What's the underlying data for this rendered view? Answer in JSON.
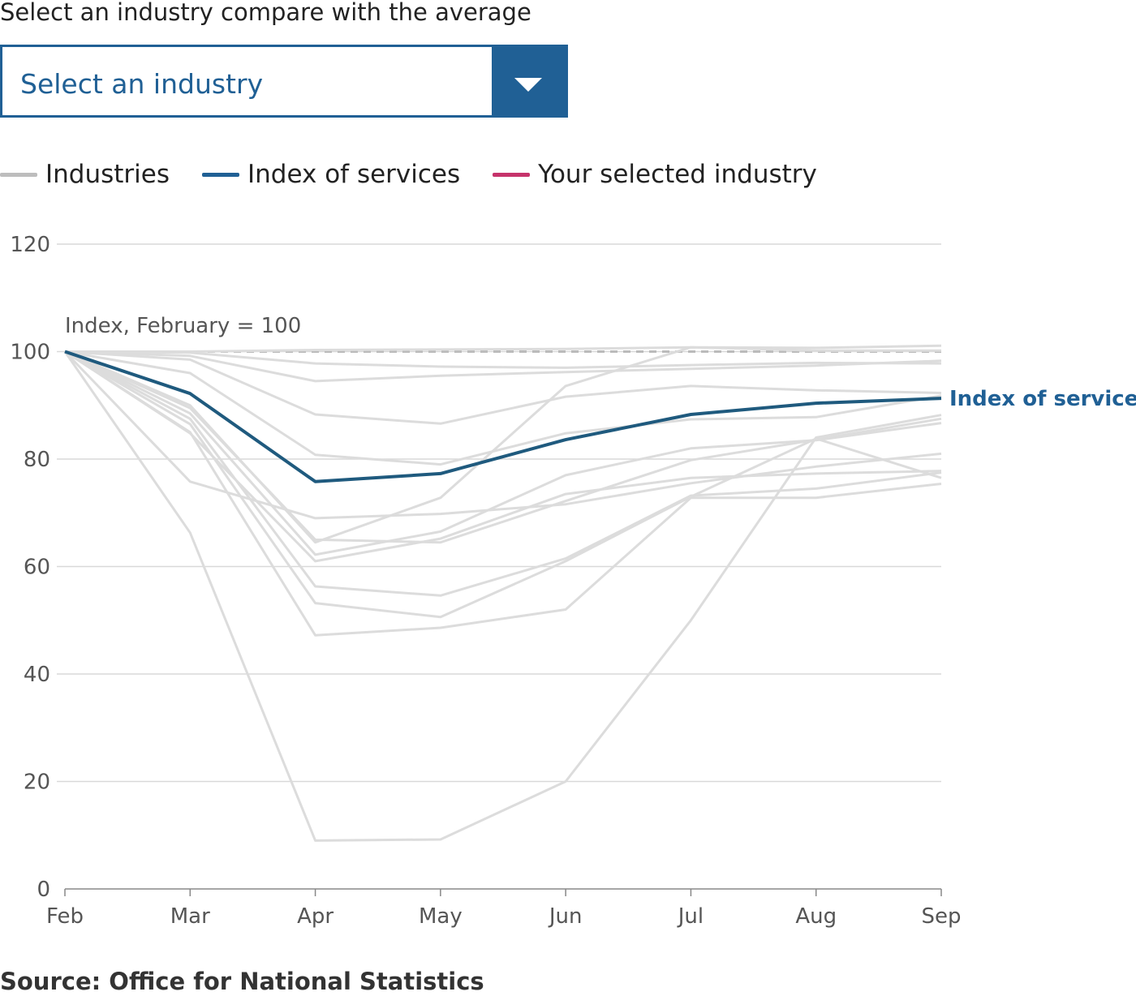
{
  "prompt": "Select an industry compare with the average",
  "select": {
    "value": "Select an industry",
    "icon": "chevron-down-icon"
  },
  "legend": [
    {
      "label": "Industries",
      "color": "#bdbdbd"
    },
    {
      "label": "Index of services",
      "color": "#206095"
    },
    {
      "label": "Your selected industry",
      "color": "#c6336b"
    }
  ],
  "source": "Source: Office for National Statistics",
  "chart_data": {
    "type": "line",
    "annotation": "Index, February = 100",
    "x": [
      "Feb",
      "Mar",
      "Apr",
      "May",
      "Jun",
      "Jul",
      "Aug",
      "Sep"
    ],
    "ylim": [
      0,
      120
    ],
    "yticks": [
      0,
      20,
      40,
      60,
      80,
      100,
      120
    ],
    "grid": true,
    "reference_line": 100,
    "highlight_label": "Index of services",
    "series": [
      {
        "name": "Index of services",
        "values": [
          100,
          92.2,
          75.8,
          77.3,
          83.6,
          88.3,
          90.4,
          91.3
        ]
      },
      {
        "values": [
          100,
          100,
          100.3,
          100.4,
          100.5,
          100.8,
          100.7,
          101.1
        ]
      },
      {
        "values": [
          100,
          99.8,
          97.8,
          97.2,
          97.0,
          97.5,
          97.9,
          97.8
        ]
      },
      {
        "values": [
          100,
          99.2,
          94.5,
          95.5,
          96.2,
          96.8,
          97.4,
          98.3
        ]
      },
      {
        "values": [
          100,
          98.5,
          88.3,
          86.6,
          91.6,
          93.6,
          92.8,
          92.3
        ]
      },
      {
        "values": [
          100,
          96,
          80.8,
          79,
          84.8,
          87.4,
          87.8,
          91.8
        ]
      },
      {
        "values": [
          100,
          90,
          64.5,
          72.8,
          93.6,
          100.8,
          100.2,
          100.2
        ]
      },
      {
        "values": [
          100,
          75.8,
          69.0,
          69.8,
          71.6,
          75.5,
          78.6,
          81
        ]
      },
      {
        "values": [
          100,
          88.5,
          62.2,
          66.5,
          77.0,
          82.0,
          83.5,
          86.7
        ]
      },
      {
        "values": [
          100,
          84.8,
          61.0,
          65.2,
          73.5,
          76.5,
          77.3,
          77.8
        ]
      },
      {
        "values": [
          100,
          89.5,
          65.0,
          64.5,
          72.2,
          79.8,
          83.6,
          87.5
        ]
      },
      {
        "values": [
          100,
          87.5,
          56.3,
          54.6,
          61.5,
          73.2,
          74.5,
          77.5
        ]
      },
      {
        "values": [
          100,
          86.5,
          53.2,
          50.6,
          61.0,
          73.0,
          83.8,
          76.5
        ]
      },
      {
        "values": [
          100,
          85.0,
          47.2,
          48.6,
          52.0,
          72.8,
          72.8,
          75.4
        ]
      },
      {
        "values": [
          100,
          66.3,
          9.0,
          9.2,
          20.0,
          50.0,
          84.0,
          88.2
        ]
      }
    ]
  }
}
